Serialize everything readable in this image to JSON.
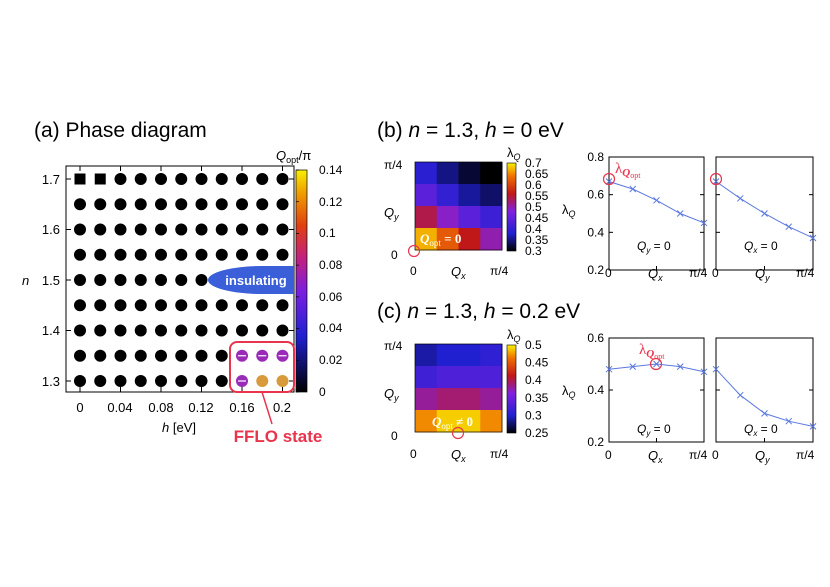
{
  "panel_a": {
    "title": "(a) Phase diagram",
    "xlabel_var": "h",
    "xlabel_unit": " [eV]",
    "ylabel": "n",
    "x_ticks": [
      "0",
      "0.04",
      "0.08",
      "0.12",
      "0.16",
      "0.2"
    ],
    "y_ticks": [
      "1.3",
      "1.4",
      "1.5",
      "1.6",
      "1.7"
    ],
    "cbar_title_q": "Q",
    "cbar_title_sub": "opt",
    "cbar_title_tail": "/π",
    "cbar_ticks": [
      "0",
      "0.02",
      "0.04",
      "0.06",
      "0.08",
      "0.1",
      "0.12",
      "0.14"
    ],
    "insulating_label": "insulating",
    "fflo_label": "FFLO state",
    "colors": {
      "fflo_box": "#e8344c",
      "insulating": "#3a5fd9",
      "fflo_purple": "#9a2ab8",
      "fflo_orange": "#d89a3a"
    }
  },
  "panel_b": {
    "title_prefix": "(b) ",
    "n_var": "n",
    "n_val": " = 1.3, ",
    "h_var": "h",
    "h_val": " = 0 eV",
    "ylabel_q": "Q",
    "ylabel_sub": "y",
    "xlabel_q": "Q",
    "xlabel_sub": "x",
    "tick_0": "0",
    "tick_pi4": "π/4",
    "cbar_title": "λ",
    "cbar_title_sub": "Q",
    "cbar_ticks": [
      "0.3",
      "0.35",
      "0.4",
      "0.45",
      "0.5",
      "0.55",
      "0.6",
      "0.65",
      "0.7"
    ],
    "heatmap_label": "Q",
    "heatmap_label_sub": "opt",
    "heatmap_label_tail": " = 0",
    "annotation": "λ",
    "annotation_sub1": "Q",
    "annotation_sub2": "opt",
    "line_ylabel": "λ",
    "line_ylabel_sub": "Q",
    "line_yticks": [
      "0.2",
      "0.4",
      "0.6",
      "0.8"
    ],
    "plot1_label_q": "Q",
    "plot1_label_sub": "y",
    "plot1_label_tail": " = 0",
    "plot2_label_q": "Q",
    "plot2_label_sub": "x",
    "plot2_label_tail": " = 0",
    "plot1_xlabel": "Q",
    "plot1_xlabel_sub": "x",
    "plot2_xlabel": "Q",
    "plot2_xlabel_sub": "y"
  },
  "panel_c": {
    "title_prefix": "(c) ",
    "n_var": "n",
    "n_val": " = 1.3, ",
    "h_var": "h",
    "h_val": " = 0.2 eV",
    "ylabel_q": "Q",
    "ylabel_sub": "y",
    "xlabel_q": "Q",
    "xlabel_sub": "x",
    "tick_0": "0",
    "tick_pi4": "π/4",
    "cbar_title": "λ",
    "cbar_title_sub": "Q",
    "cbar_ticks": [
      "0.25",
      "0.3",
      "0.35",
      "0.4",
      "0.45",
      "0.5"
    ],
    "heatmap_label": "Q",
    "heatmap_label_sub": "opt",
    "heatmap_label_tail": " ≠ 0",
    "annotation": "λ",
    "annotation_sub1": "Q",
    "annotation_sub2": "opt",
    "line_ylabel": "λ",
    "line_ylabel_sub": "Q",
    "line_yticks": [
      "0.2",
      "0.4",
      "0.6"
    ],
    "plot1_label_q": "Q",
    "plot1_label_sub": "y",
    "plot1_label_tail": " = 0",
    "plot2_label_q": "Q",
    "plot2_label_sub": "x",
    "plot2_label_tail": " = 0",
    "plot1_xlabel": "Q",
    "plot1_xlabel_sub": "x",
    "plot2_xlabel": "Q",
    "plot2_xlabel_sub": "y"
  },
  "chart_data": [
    {
      "type": "scatter",
      "title": "(a) Phase diagram",
      "xlabel": "h [eV]",
      "ylabel": "n",
      "xlim": [
        -0.01,
        0.21
      ],
      "ylim": [
        1.28,
        1.72
      ],
      "h_values": [
        0,
        0.02,
        0.04,
        0.06,
        0.08,
        0.1,
        0.12,
        0.14,
        0.16,
        0.18,
        0.2
      ],
      "n_values": [
        1.3,
        1.35,
        1.4,
        1.45,
        1.5,
        1.55,
        1.6,
        1.65,
        1.7
      ],
      "squares_at_n17_h": [
        0,
        0.02
      ],
      "insulating_n": 1.5,
      "insulating_h_from": 0.14,
      "fflo_points": [
        {
          "h": 0.16,
          "n": 1.35,
          "q_over_pi": 0.06
        },
        {
          "h": 0.18,
          "n": 1.35,
          "q_over_pi": 0.06
        },
        {
          "h": 0.2,
          "n": 1.35,
          "q_over_pi": 0.06
        },
        {
          "h": 0.16,
          "n": 1.3,
          "q_over_pi": 0.06
        },
        {
          "h": 0.18,
          "n": 1.3,
          "q_over_pi": 0.12
        },
        {
          "h": 0.2,
          "n": 1.3,
          "q_over_pi": 0.12
        }
      ],
      "colorbar": {
        "label": "Q_opt/π",
        "range": [
          0,
          0.14
        ]
      }
    },
    {
      "type": "heatmap",
      "title": "(b) n = 1.3, h = 0 eV",
      "xlabel": "Q_x",
      "ylabel": "Q_y",
      "rows_top_to_bottom": [
        [
          0.39,
          0.35,
          0.32,
          0.3
        ],
        [
          0.44,
          0.4,
          0.36,
          0.34
        ],
        [
          0.54,
          0.49,
          0.44,
          0.41
        ],
        [
          0.67,
          0.62,
          0.56,
          0.5
        ]
      ],
      "colorbar": {
        "label": "λ_Q",
        "range": [
          0.3,
          0.7
        ]
      }
    },
    {
      "type": "line",
      "title": "(b) λ_Q along Q_y = 0",
      "x_fraction_of_pi4": [
        0,
        0.25,
        0.5,
        0.75,
        1.0
      ],
      "values": [
        0.67,
        0.63,
        0.57,
        0.5,
        0.45
      ],
      "ylim": [
        0.2,
        0.8
      ]
    },
    {
      "type": "line",
      "title": "(b) λ_Q along Q_x = 0",
      "x_fraction_of_pi4": [
        0,
        0.25,
        0.5,
        0.75,
        1.0
      ],
      "values": [
        0.67,
        0.58,
        0.5,
        0.43,
        0.37
      ],
      "ylim": [
        0.2,
        0.8
      ]
    },
    {
      "type": "heatmap",
      "title": "(c) n = 1.3, h = 0.2 eV",
      "xlabel": "Q_x",
      "ylabel": "Q_y",
      "rows_top_to_bottom": [
        [
          0.29,
          0.3,
          0.3,
          0.31
        ],
        [
          0.32,
          0.33,
          0.33,
          0.33
        ],
        [
          0.38,
          0.39,
          0.39,
          0.38
        ],
        [
          0.47,
          0.49,
          0.49,
          0.47
        ]
      ],
      "colorbar": {
        "label": "λ_Q",
        "range": [
          0.25,
          0.5
        ]
      }
    },
    {
      "type": "line",
      "title": "(c) λ_Q along Q_y = 0",
      "x_fraction_of_pi4": [
        0,
        0.25,
        0.5,
        0.75,
        1.0
      ],
      "values": [
        0.48,
        0.49,
        0.5,
        0.49,
        0.47
      ],
      "ylim": [
        0.2,
        0.6
      ]
    },
    {
      "type": "line",
      "title": "(c) λ_Q along Q_x = 0",
      "x_fraction_of_pi4": [
        0,
        0.25,
        0.5,
        0.75,
        1.0
      ],
      "values": [
        0.48,
        0.38,
        0.31,
        0.28,
        0.26
      ],
      "ylim": [
        0.2,
        0.6
      ]
    }
  ]
}
